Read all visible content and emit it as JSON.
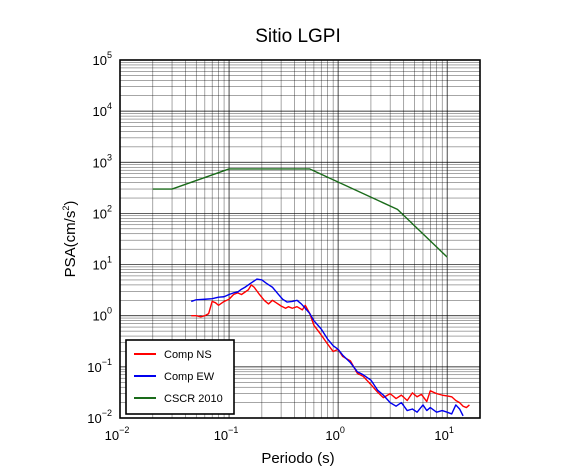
{
  "chart_data": {
    "type": "line",
    "title": "Sitio LGPI",
    "xlabel": "Periodo (s)",
    "ylabel_text": "PSA(cm/s",
    "ylabel_sup": "2",
    "ylabel_close": ")",
    "x_scale": "log",
    "y_scale": "log",
    "xlim": [
      0.01,
      20
    ],
    "ylim": [
      0.01,
      100000
    ],
    "grid": true,
    "legend_position": "bottom-left",
    "x_ticks": [
      {
        "base": "10",
        "exp": "−2",
        "value": 0.01
      },
      {
        "base": "10",
        "exp": "−1",
        "value": 0.1
      },
      {
        "base": "10",
        "exp": "0",
        "value": 1
      },
      {
        "base": "10",
        "exp": "1",
        "value": 10
      }
    ],
    "y_ticks": [
      {
        "base": "10",
        "exp": "−2",
        "value": 0.01
      },
      {
        "base": "10",
        "exp": "−1",
        "value": 0.1
      },
      {
        "base": "10",
        "exp": "0",
        "value": 1
      },
      {
        "base": "10",
        "exp": "1",
        "value": 10
      },
      {
        "base": "10",
        "exp": "2",
        "value": 100
      },
      {
        "base": "10",
        "exp": "3",
        "value": 1000
      },
      {
        "base": "10",
        "exp": "4",
        "value": 10000
      },
      {
        "base": "10",
        "exp": "5",
        "value": 100000
      }
    ],
    "series": [
      {
        "name": "CSCR 2010",
        "color": "#1a6b1a",
        "points": [
          [
            0.02,
            300
          ],
          [
            0.03,
            300
          ],
          [
            0.1,
            740
          ],
          [
            0.55,
            740
          ],
          [
            3.5,
            120
          ],
          [
            10,
            14
          ]
        ]
      },
      {
        "name": "Comp NS",
        "color": "#ff0000",
        "points": [
          [
            0.045,
            1.0
          ],
          [
            0.05,
            1.0
          ],
          [
            0.055,
            0.95
          ],
          [
            0.06,
            1.0
          ],
          [
            0.065,
            1.1
          ],
          [
            0.07,
            1.9
          ],
          [
            0.075,
            1.8
          ],
          [
            0.08,
            1.6
          ],
          [
            0.09,
            1.9
          ],
          [
            0.1,
            2.1
          ],
          [
            0.11,
            2.6
          ],
          [
            0.12,
            2.8
          ],
          [
            0.13,
            2.6
          ],
          [
            0.15,
            3.2
          ],
          [
            0.16,
            4.0
          ],
          [
            0.17,
            3.6
          ],
          [
            0.19,
            2.6
          ],
          [
            0.21,
            2.0
          ],
          [
            0.23,
            1.7
          ],
          [
            0.25,
            2.0
          ],
          [
            0.27,
            1.8
          ],
          [
            0.3,
            1.55
          ],
          [
            0.33,
            1.4
          ],
          [
            0.35,
            1.5
          ],
          [
            0.38,
            1.4
          ],
          [
            0.42,
            1.5
          ],
          [
            0.47,
            1.3
          ],
          [
            0.5,
            1.6
          ],
          [
            0.55,
            1.1
          ],
          [
            0.6,
            0.65
          ],
          [
            0.7,
            0.42
          ],
          [
            0.8,
            0.28
          ],
          [
            0.9,
            0.2
          ],
          [
            1.0,
            0.22
          ],
          [
            1.1,
            0.16
          ],
          [
            1.3,
            0.13
          ],
          [
            1.5,
            0.075
          ],
          [
            1.7,
            0.065
          ],
          [
            2.0,
            0.045
          ],
          [
            2.3,
            0.032
          ],
          [
            2.6,
            0.025
          ],
          [
            3.0,
            0.03
          ],
          [
            3.4,
            0.024
          ],
          [
            3.8,
            0.028
          ],
          [
            4.3,
            0.022
          ],
          [
            4.8,
            0.031
          ],
          [
            5.3,
            0.026
          ],
          [
            5.8,
            0.029
          ],
          [
            6.5,
            0.021
          ],
          [
            7.0,
            0.034
          ],
          [
            8.0,
            0.03
          ],
          [
            9.0,
            0.028
          ],
          [
            10.0,
            0.027
          ],
          [
            11.0,
            0.026
          ],
          [
            12.0,
            0.022
          ],
          [
            13.0,
            0.02
          ],
          [
            14.0,
            0.017
          ],
          [
            15.0,
            0.016
          ],
          [
            16.0,
            0.018
          ]
        ]
      },
      {
        "name": "Comp EW",
        "color": "#0000ee",
        "points": [
          [
            0.045,
            1.9
          ],
          [
            0.05,
            2.05
          ],
          [
            0.06,
            2.1
          ],
          [
            0.07,
            2.15
          ],
          [
            0.08,
            2.3
          ],
          [
            0.09,
            2.35
          ],
          [
            0.1,
            2.6
          ],
          [
            0.11,
            2.8
          ],
          [
            0.12,
            2.9
          ],
          [
            0.13,
            3.3
          ],
          [
            0.14,
            3.6
          ],
          [
            0.16,
            4.4
          ],
          [
            0.18,
            5.2
          ],
          [
            0.2,
            5.0
          ],
          [
            0.22,
            4.3
          ],
          [
            0.25,
            3.6
          ],
          [
            0.28,
            2.7
          ],
          [
            0.31,
            2.1
          ],
          [
            0.34,
            1.85
          ],
          [
            0.38,
            1.9
          ],
          [
            0.42,
            2.0
          ],
          [
            0.46,
            1.7
          ],
          [
            0.5,
            1.4
          ],
          [
            0.55,
            1.1
          ],
          [
            0.6,
            0.8
          ],
          [
            0.7,
            0.55
          ],
          [
            0.8,
            0.35
          ],
          [
            0.9,
            0.26
          ],
          [
            1.0,
            0.22
          ],
          [
            1.1,
            0.17
          ],
          [
            1.3,
            0.12
          ],
          [
            1.5,
            0.08
          ],
          [
            1.7,
            0.07
          ],
          [
            2.0,
            0.055
          ],
          [
            2.3,
            0.035
          ],
          [
            2.6,
            0.028
          ],
          [
            3.0,
            0.02
          ],
          [
            3.4,
            0.017
          ],
          [
            3.8,
            0.02
          ],
          [
            4.3,
            0.014
          ],
          [
            4.8,
            0.015
          ],
          [
            5.3,
            0.013
          ],
          [
            6.0,
            0.018
          ],
          [
            6.5,
            0.014
          ],
          [
            7.0,
            0.016
          ],
          [
            8.0,
            0.013
          ],
          [
            9.0,
            0.014
          ],
          [
            10.0,
            0.013
          ],
          [
            11.0,
            0.012
          ],
          [
            12.0,
            0.018
          ],
          [
            13.0,
            0.015
          ],
          [
            14.0,
            0.011
          ]
        ]
      }
    ]
  }
}
